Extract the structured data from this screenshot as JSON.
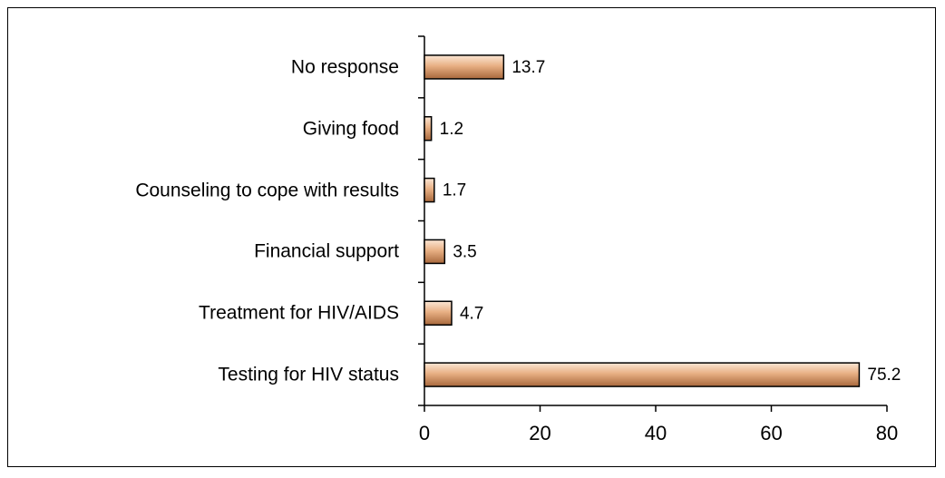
{
  "chart_data": {
    "type": "bar",
    "orientation": "horizontal",
    "categories": [
      "No response",
      "Giving food",
      "Counseling to cope with results",
      "Financial support",
      "Treatment for HIV/AIDS",
      "Testing for HIV status"
    ],
    "values": [
      13.7,
      1.2,
      1.7,
      3.5,
      4.7,
      75.2
    ],
    "color": "#e8b084",
    "xlim": [
      0,
      80
    ],
    "xticks": [
      0,
      20,
      40,
      60,
      80
    ]
  }
}
